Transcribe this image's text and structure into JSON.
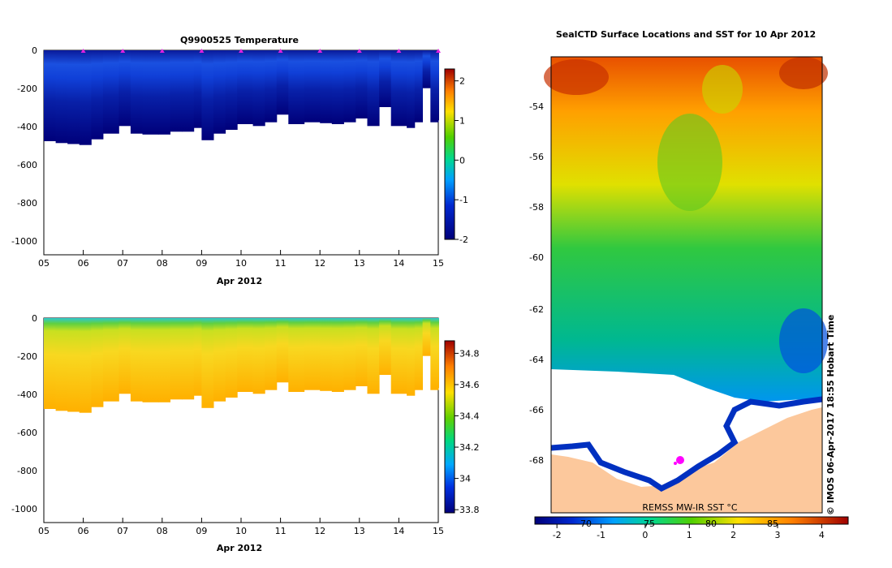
{
  "chart_data": [
    {
      "type": "heatmap",
      "title": "Q9900525  Temperature",
      "xlabel": "Apr 2012",
      "ylabel": "",
      "x_tick_labels": [
        "05",
        "06",
        "07",
        "08",
        "09",
        "10",
        "11",
        "12",
        "13",
        "14",
        "15"
      ],
      "y_tick_labels": [
        "0",
        "-200",
        "-400",
        "-600",
        "-800",
        "-1000"
      ],
      "ylim": [
        -1080,
        0
      ],
      "xlim": [
        5,
        15
      ],
      "colorbar": {
        "min": -2,
        "max": 2.3,
        "tick_labels": [
          "2",
          "1",
          "0",
          "-1",
          "-2"
        ],
        "tick_values": [
          2,
          1,
          0,
          -1,
          -2
        ]
      },
      "profile_markers": [
        6,
        7,
        8,
        9,
        10,
        11,
        12,
        13,
        14,
        15
      ],
      "max_depth_profile": [
        {
          "day": 5.0,
          "depth": -480
        },
        {
          "day": 5.3,
          "depth": -490
        },
        {
          "day": 5.6,
          "depth": -495
        },
        {
          "day": 5.9,
          "depth": -500
        },
        {
          "day": 6.2,
          "depth": -470
        },
        {
          "day": 6.5,
          "depth": -440
        },
        {
          "day": 6.9,
          "depth": -400
        },
        {
          "day": 7.2,
          "depth": -440
        },
        {
          "day": 7.5,
          "depth": -445
        },
        {
          "day": 7.9,
          "depth": -445
        },
        {
          "day": 8.2,
          "depth": -430
        },
        {
          "day": 8.5,
          "depth": -430
        },
        {
          "day": 8.8,
          "depth": -410
        },
        {
          "day": 9.0,
          "depth": -475
        },
        {
          "day": 9.3,
          "depth": -440
        },
        {
          "day": 9.6,
          "depth": -420
        },
        {
          "day": 9.9,
          "depth": -390
        },
        {
          "day": 10.3,
          "depth": -400
        },
        {
          "day": 10.6,
          "depth": -380
        },
        {
          "day": 10.9,
          "depth": -340
        },
        {
          "day": 11.2,
          "depth": -390
        },
        {
          "day": 11.6,
          "depth": -380
        },
        {
          "day": 12.0,
          "depth": -385
        },
        {
          "day": 12.3,
          "depth": -390
        },
        {
          "day": 12.6,
          "depth": -380
        },
        {
          "day": 12.9,
          "depth": -360
        },
        {
          "day": 13.2,
          "depth": -400
        },
        {
          "day": 13.5,
          "depth": -300
        },
        {
          "day": 13.8,
          "depth": -400
        },
        {
          "day": 14.2,
          "depth": -410
        },
        {
          "day": 14.4,
          "depth": -380
        },
        {
          "day": 14.6,
          "depth": -200
        },
        {
          "day": 14.8,
          "depth": -380
        },
        {
          "day": 15.0,
          "depth": -370
        }
      ]
    },
    {
      "type": "heatmap",
      "title": "",
      "xlabel": "Apr 2012",
      "ylabel": "",
      "x_tick_labels": [
        "05",
        "06",
        "07",
        "08",
        "09",
        "10",
        "11",
        "12",
        "13",
        "14",
        "15"
      ],
      "y_tick_labels": [
        "0",
        "-200",
        "-400",
        "-600",
        "-800",
        "-1000"
      ],
      "ylim": [
        -1080,
        0
      ],
      "xlim": [
        5,
        15
      ],
      "colorbar": {
        "min": 33.78,
        "max": 34.88,
        "tick_labels": [
          "34.8",
          "34.6",
          "34.4",
          "34.2",
          "34",
          "33.8"
        ],
        "tick_values": [
          34.8,
          34.6,
          34.4,
          34.2,
          34.0,
          33.8
        ]
      }
    },
    {
      "type": "heatmap",
      "title": "SealCTD Surface Locations and SST for 10 Apr 2012",
      "xlabel": "",
      "ylabel": "",
      "y_tick_labels": [
        "-54",
        "-56",
        "-58",
        "-60",
        "-62",
        "-64",
        "-66",
        "-68"
      ],
      "ylim": [
        -69.8,
        -52.0
      ],
      "colorbar": {
        "min": -2.5,
        "max": 4.6,
        "tick_labels": [
          "-2",
          "-1",
          "0",
          "1",
          "2",
          "3",
          "4"
        ],
        "tick_values": [
          -2,
          -1,
          0,
          1,
          2,
          3,
          4
        ]
      },
      "colorbar_overlay_labels": [
        "70",
        "75",
        "80",
        "85"
      ],
      "annotations": [
        "REMSS MW-IR SST °C",
        "© IMOS 06-Apr-2017 18:55 Hobart Time"
      ]
    }
  ]
}
